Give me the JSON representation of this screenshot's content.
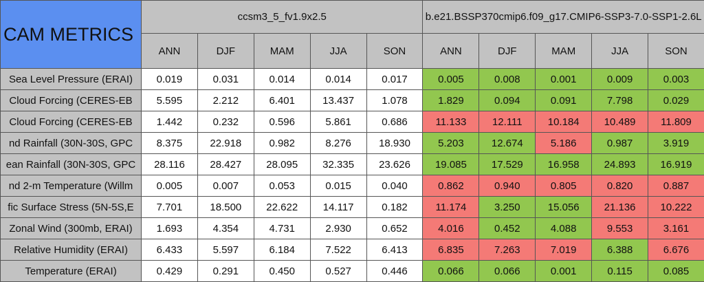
{
  "table": {
    "title": "CAM METRICS",
    "groups": [
      "ccsm3_5_fv1.9x2.5",
      "b.e21.BSSP370cmip6.f09_g17.CMIP6-SSP3-7.0-SSP1-2.6L"
    ],
    "seasons": [
      [
        "ANN",
        "DJF",
        "MAM",
        "JJA",
        "SON"
      ],
      [
        "ANN",
        "DJF",
        "MAM",
        "JJA",
        "SON"
      ]
    ],
    "good_color": "#92c74f",
    "bad_color": "#f47a76",
    "rows": [
      {
        "label": "Sea Level Pressure (ERAI)",
        "values": [
          "0.019",
          "0.031",
          "0.014",
          "0.014",
          "0.017",
          "0.005",
          "0.008",
          "0.001",
          "0.009",
          "0.003"
        ],
        "status": [
          "good",
          "good",
          "good",
          "good",
          "good"
        ]
      },
      {
        "label": "Cloud Forcing (CERES-EB",
        "values": [
          "5.595",
          "2.212",
          "6.401",
          "13.437",
          "1.078",
          "1.829",
          "0.094",
          "0.091",
          "7.798",
          "0.029"
        ],
        "status": [
          "good",
          "good",
          "good",
          "good",
          "good"
        ]
      },
      {
        "label": "Cloud Forcing (CERES-EB",
        "values": [
          "1.442",
          "0.232",
          "0.596",
          "5.861",
          "0.686",
          "11.133",
          "12.111",
          "10.184",
          "10.489",
          "11.809"
        ],
        "status": [
          "bad",
          "bad",
          "bad",
          "bad",
          "bad"
        ]
      },
      {
        "label": "nd Rainfall (30N-30S, GPC",
        "values": [
          "8.375",
          "22.918",
          "0.982",
          "8.276",
          "18.930",
          "5.203",
          "12.674",
          "5.186",
          "0.987",
          "3.919"
        ],
        "status": [
          "good",
          "good",
          "bad",
          "good",
          "good"
        ]
      },
      {
        "label": "ean Rainfall (30N-30S, GPC",
        "values": [
          "28.116",
          "28.427",
          "28.095",
          "32.335",
          "23.626",
          "19.085",
          "17.529",
          "16.958",
          "24.893",
          "16.919"
        ],
        "status": [
          "good",
          "good",
          "good",
          "good",
          "good"
        ]
      },
      {
        "label": "nd 2-m Temperature (Willm",
        "values": [
          "0.005",
          "0.007",
          "0.053",
          "0.015",
          "0.040",
          "0.862",
          "0.940",
          "0.805",
          "0.820",
          "0.887"
        ],
        "status": [
          "bad",
          "bad",
          "bad",
          "bad",
          "bad"
        ]
      },
      {
        "label": "fic Surface Stress (5N-5S,E",
        "values": [
          "7.701",
          "18.500",
          "22.622",
          "14.117",
          "0.182",
          "11.174",
          "3.250",
          "15.056",
          "21.136",
          "10.222"
        ],
        "status": [
          "bad",
          "good",
          "good",
          "bad",
          "bad"
        ]
      },
      {
        "label": "Zonal Wind (300mb, ERAI)",
        "values": [
          "1.693",
          "4.354",
          "4.731",
          "2.930",
          "0.652",
          "4.016",
          "0.452",
          "4.088",
          "9.553",
          "3.161"
        ],
        "status": [
          "bad",
          "good",
          "good",
          "bad",
          "bad"
        ]
      },
      {
        "label": "Relative Humidity (ERAI)",
        "values": [
          "6.433",
          "5.597",
          "6.184",
          "7.522",
          "6.413",
          "6.835",
          "7.263",
          "7.019",
          "6.388",
          "6.676"
        ],
        "status": [
          "bad",
          "bad",
          "bad",
          "good",
          "bad"
        ]
      },
      {
        "label": "Temperature (ERAI)",
        "values": [
          "0.429",
          "0.291",
          "0.450",
          "0.527",
          "0.446",
          "0.066",
          "0.066",
          "0.001",
          "0.115",
          "0.085"
        ],
        "status": [
          "good",
          "good",
          "good",
          "good",
          "good"
        ]
      }
    ]
  }
}
